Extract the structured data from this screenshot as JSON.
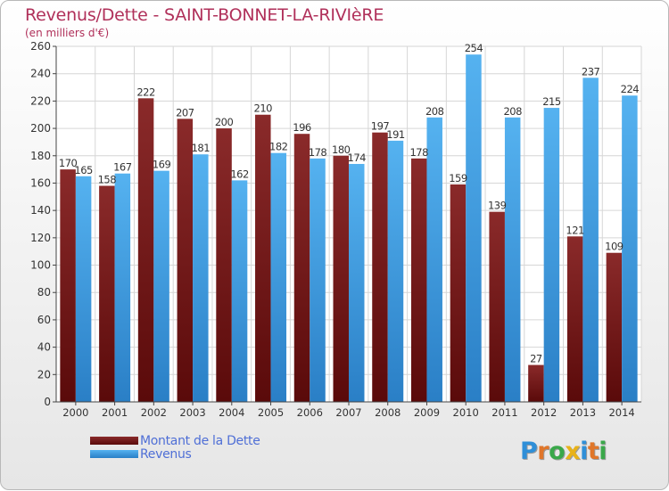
{
  "chart_data": {
    "type": "bar",
    "title": "Revenus/Dette - SAINT-BONNET-LA-RIVIèRE",
    "subtitle": "(en milliers d'€)",
    "categories": [
      "2000",
      "2001",
      "2002",
      "2003",
      "2004",
      "2005",
      "2006",
      "2007",
      "2008",
      "2009",
      "2010",
      "2011",
      "2012",
      "2013",
      "2014"
    ],
    "series": [
      {
        "name": "Montant de la Dette",
        "color": "#7a1a1a",
        "values": [
          170,
          158,
          222,
          207,
          200,
          210,
          196,
          180,
          197,
          178,
          159,
          139,
          27,
          121,
          109
        ]
      },
      {
        "name": "Revenus",
        "color": "#4aa3e6",
        "values": [
          165,
          167,
          169,
          181,
          162,
          182,
          178,
          174,
          191,
          208,
          254,
          208,
          215,
          237,
          224
        ]
      }
    ],
    "ylim": [
      0,
      260
    ],
    "yticks": [
      0,
      20,
      40,
      60,
      80,
      100,
      120,
      140,
      160,
      180,
      200,
      220,
      240,
      260
    ],
    "grid": true,
    "legend": "bottom-left"
  },
  "logo": {
    "letters": [
      "P",
      "r",
      "o",
      "x",
      "i",
      "t",
      "i"
    ],
    "colors": [
      "#2f8fd8",
      "#e0762a",
      "#3aa84a",
      "#e8b21a",
      "#2f8fd8",
      "#e0762a",
      "#3aa84a"
    ]
  }
}
